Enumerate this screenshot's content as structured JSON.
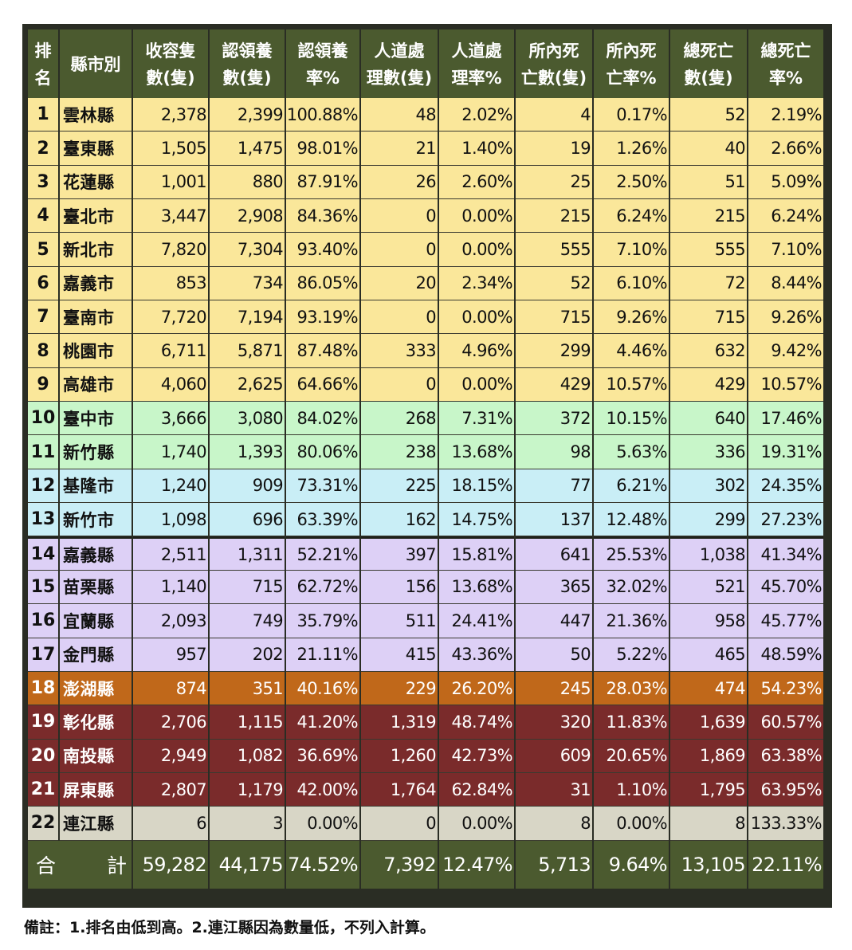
{
  "headers": {
    "rank": [
      "排",
      "名"
    ],
    "county": "縣市別",
    "cols": [
      [
        "收容隻",
        "數(隻)"
      ],
      [
        "認領養",
        "數(隻)"
      ],
      [
        "認領養",
        "率%"
      ],
      [
        "人道處",
        "理數(隻)"
      ],
      [
        "人道處",
        "理率%"
      ],
      [
        "所內死",
        "亡數(隻)"
      ],
      [
        "所內死",
        "亡率%"
      ],
      [
        "總死亡",
        "數(隻)"
      ],
      [
        "總死亡",
        "率%"
      ]
    ]
  },
  "row_colors": {
    "yellow": "#fae79a",
    "green": "#c8f6c9",
    "cyan": "#c9eef6",
    "lavender": "#ddd0f6",
    "orange": "#c0681a",
    "maroon": "#7a2b2b",
    "gray": "#d8d6c6"
  },
  "rows": [
    {
      "rank": "1",
      "county": "雲林縣",
      "color": "yellow",
      "values": [
        "2,378",
        "2,399",
        "100.88%",
        "48",
        "2.02%",
        "4",
        "0.17%",
        "52",
        "2.19%"
      ]
    },
    {
      "rank": "2",
      "county": "臺東縣",
      "color": "yellow",
      "values": [
        "1,505",
        "1,475",
        "98.01%",
        "21",
        "1.40%",
        "19",
        "1.26%",
        "40",
        "2.66%"
      ]
    },
    {
      "rank": "3",
      "county": "花蓮縣",
      "color": "yellow",
      "values": [
        "1,001",
        "880",
        "87.91%",
        "26",
        "2.60%",
        "25",
        "2.50%",
        "51",
        "5.09%"
      ]
    },
    {
      "rank": "4",
      "county": "臺北市",
      "color": "yellow",
      "values": [
        "3,447",
        "2,908",
        "84.36%",
        "0",
        "0.00%",
        "215",
        "6.24%",
        "215",
        "6.24%"
      ]
    },
    {
      "rank": "5",
      "county": "新北市",
      "color": "yellow",
      "values": [
        "7,820",
        "7,304",
        "93.40%",
        "0",
        "0.00%",
        "555",
        "7.10%",
        "555",
        "7.10%"
      ]
    },
    {
      "rank": "6",
      "county": "嘉義市",
      "color": "yellow",
      "values": [
        "853",
        "734",
        "86.05%",
        "20",
        "2.34%",
        "52",
        "6.10%",
        "72",
        "8.44%"
      ]
    },
    {
      "rank": "7",
      "county": "臺南市",
      "color": "yellow",
      "values": [
        "7,720",
        "7,194",
        "93.19%",
        "0",
        "0.00%",
        "715",
        "9.26%",
        "715",
        "9.26%"
      ]
    },
    {
      "rank": "8",
      "county": "桃園市",
      "color": "yellow",
      "values": [
        "6,711",
        "5,871",
        "87.48%",
        "333",
        "4.96%",
        "299",
        "4.46%",
        "632",
        "9.42%"
      ]
    },
    {
      "rank": "9",
      "county": "高雄市",
      "color": "yellow",
      "values": [
        "4,060",
        "2,625",
        "64.66%",
        "0",
        "0.00%",
        "429",
        "10.57%",
        "429",
        "10.57%"
      ]
    },
    {
      "rank": "10",
      "county": "臺中市",
      "color": "green",
      "values": [
        "3,666",
        "3,080",
        "84.02%",
        "268",
        "7.31%",
        "372",
        "10.15%",
        "640",
        "17.46%"
      ]
    },
    {
      "rank": "11",
      "county": "新竹縣",
      "color": "green",
      "values": [
        "1,740",
        "1,393",
        "80.06%",
        "238",
        "13.68%",
        "98",
        "5.63%",
        "336",
        "19.31%"
      ]
    },
    {
      "rank": "12",
      "county": "基隆市",
      "color": "cyan",
      "values": [
        "1,240",
        "909",
        "73.31%",
        "225",
        "18.15%",
        "77",
        "6.21%",
        "302",
        "24.35%"
      ]
    },
    {
      "rank": "13",
      "county": "新竹市",
      "color": "cyan",
      "values": [
        "1,098",
        "696",
        "63.39%",
        "162",
        "14.75%",
        "137",
        "12.48%",
        "299",
        "27.23%"
      ]
    },
    {
      "rank": "14",
      "county": "嘉義縣",
      "color": "lavender",
      "values": [
        "2,511",
        "1,311",
        "52.21%",
        "397",
        "15.81%",
        "641",
        "25.53%",
        "1,038",
        "41.34%"
      ]
    },
    {
      "rank": "15",
      "county": "苗栗縣",
      "color": "lavender",
      "values": [
        "1,140",
        "715",
        "62.72%",
        "156",
        "13.68%",
        "365",
        "32.02%",
        "521",
        "45.70%"
      ]
    },
    {
      "rank": "16",
      "county": "宜蘭縣",
      "color": "lavender",
      "values": [
        "2,093",
        "749",
        "35.79%",
        "511",
        "24.41%",
        "447",
        "21.36%",
        "958",
        "45.77%"
      ]
    },
    {
      "rank": "17",
      "county": "金門縣",
      "color": "lavender",
      "values": [
        "957",
        "202",
        "21.11%",
        "415",
        "43.36%",
        "50",
        "5.22%",
        "465",
        "48.59%"
      ]
    },
    {
      "rank": "18",
      "county": "澎湖縣",
      "color": "orange",
      "values": [
        "874",
        "351",
        "40.16%",
        "229",
        "26.20%",
        "245",
        "28.03%",
        "474",
        "54.23%"
      ]
    },
    {
      "rank": "19",
      "county": "彰化縣",
      "color": "maroon",
      "values": [
        "2,706",
        "1,115",
        "41.20%",
        "1,319",
        "48.74%",
        "320",
        "11.83%",
        "1,639",
        "60.57%"
      ]
    },
    {
      "rank": "20",
      "county": "南投縣",
      "color": "maroon",
      "values": [
        "2,949",
        "1,082",
        "36.69%",
        "1,260",
        "42.73%",
        "609",
        "20.65%",
        "1,869",
        "63.38%"
      ]
    },
    {
      "rank": "21",
      "county": "屏東縣",
      "color": "maroon",
      "values": [
        "2,807",
        "1,179",
        "42.00%",
        "1,764",
        "62.84%",
        "31",
        "1.10%",
        "1,795",
        "63.95%"
      ]
    },
    {
      "rank": "22",
      "county": "連江縣",
      "color": "gray",
      "values": [
        "6",
        "3",
        "0.00%",
        "0",
        "0.00%",
        "8",
        "0.00%",
        "8",
        "133.33%"
      ]
    }
  ],
  "total": {
    "label_left": "合",
    "label_right": "計",
    "values": [
      "59,282",
      "44,175",
      "74.52%",
      "7,392",
      "12.47%",
      "5,713",
      "9.64%",
      "13,105",
      "22.11%"
    ]
  },
  "note": "備註：1.排名由低到高。2.連江縣因為數量低，不列入計算。"
}
